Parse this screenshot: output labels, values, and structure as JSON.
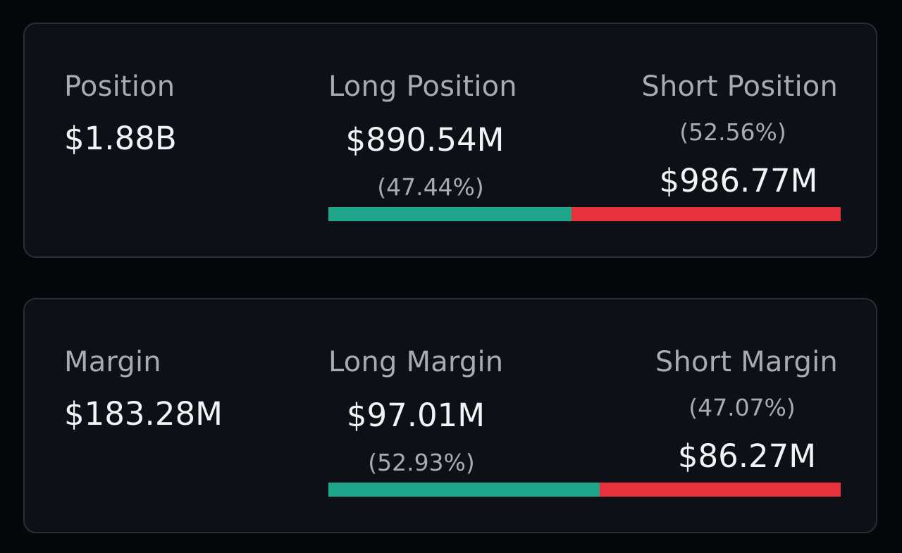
{
  "colors": {
    "long": "#1ea58a",
    "short": "#e8333f"
  },
  "position": {
    "title": "Position",
    "total": "$1.88B",
    "long_label": "Long Position",
    "long_value": "$890.54M",
    "long_pct_text": "(47.44%)",
    "long_fraction": 0.4744,
    "short_label": "Short Position",
    "short_pct_text": "(52.56%)",
    "short_value": "$986.77M"
  },
  "margin": {
    "title": "Margin",
    "total": "$183.28M",
    "long_label": "Long Margin",
    "long_value": "$97.01M",
    "long_pct_text": "(52.93%)",
    "long_fraction": 0.5293,
    "short_label": "Short Margin",
    "short_pct_text": "(47.07%)",
    "short_value": "$86.27M"
  }
}
